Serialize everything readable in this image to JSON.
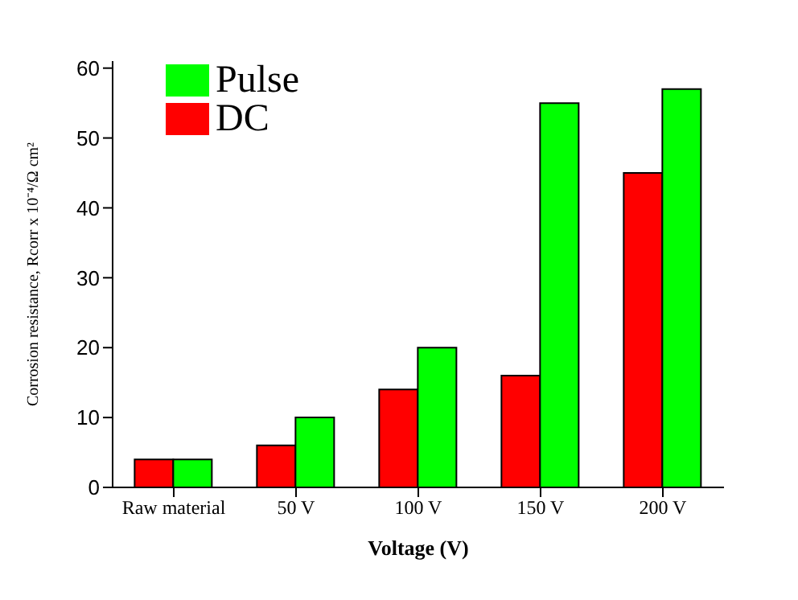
{
  "chart_data": {
    "type": "bar",
    "xlabel": "Voltage (V)",
    "ylabel": "Corrosion resistance, Rcorr x 10⁻⁴/Ω cm²",
    "categories": [
      "Raw material",
      "50 V",
      "100 V",
      "150 V",
      "200 V"
    ],
    "series": [
      {
        "name": "DC",
        "color": "#ff0000",
        "values": [
          4,
          6,
          14,
          16,
          45
        ]
      },
      {
        "name": "Pulse",
        "color": "#00ff00",
        "values": [
          4,
          10,
          20,
          55,
          57
        ]
      }
    ],
    "ylim": [
      0,
      61
    ],
    "yticks": [
      0,
      10,
      20,
      30,
      40,
      50,
      60
    ],
    "grid": false,
    "legend": "top left"
  }
}
